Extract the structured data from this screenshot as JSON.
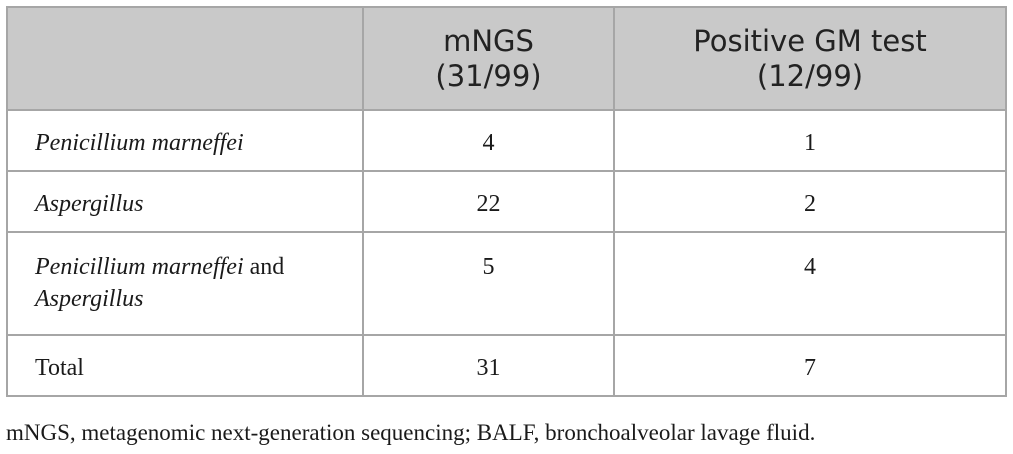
{
  "table": {
    "headers": [
      {
        "line1": "",
        "line2": ""
      },
      {
        "line1": "mNGS",
        "line2": "(31/99)"
      },
      {
        "line1": "Positive GM test",
        "line2": "(12/99)"
      }
    ],
    "rows": [
      {
        "label_italic": "Penicillium marneffei",
        "label_plain": "",
        "label_italic2": "",
        "mngs": "4",
        "gm": "1"
      },
      {
        "label_italic": "Aspergillus",
        "label_plain": "",
        "label_italic2": "",
        "mngs": "22",
        "gm": "2"
      },
      {
        "label_italic": "Penicillium marneffei",
        "label_plain": " and",
        "label_italic2": "Aspergillus",
        "mngs": "5",
        "gm": "4"
      },
      {
        "label_italic": "",
        "label_plain": "Total",
        "label_italic2": "",
        "mngs": "31",
        "gm": "7"
      }
    ]
  },
  "footnote": "mNGS, metagenomic next-generation sequencing; BALF, bronchoalveolar lavage fluid."
}
